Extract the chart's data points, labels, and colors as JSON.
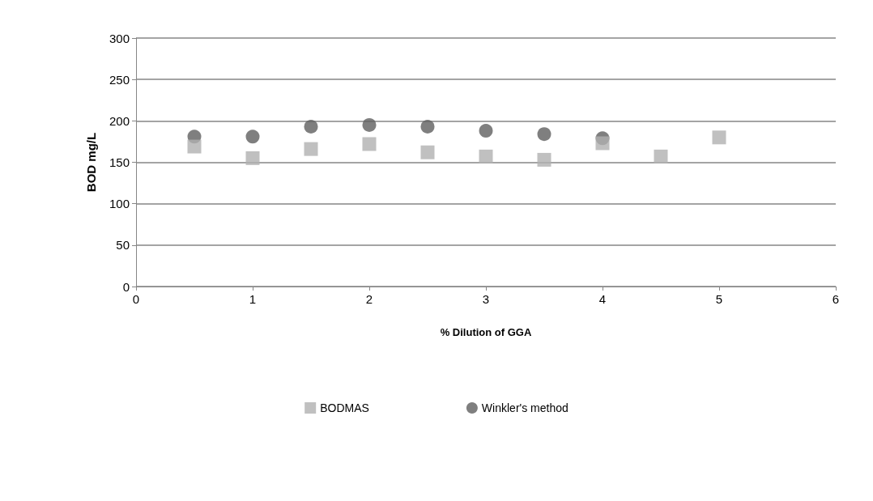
{
  "chart_data": {
    "type": "scatter",
    "xlabel": "% Dilution of GGA",
    "ylabel": "BOD mg/L",
    "xlim": [
      0,
      6
    ],
    "xticks": [
      0,
      1,
      2,
      3,
      4,
      5,
      6
    ],
    "ylim": [
      0,
      300
    ],
    "yticks": [
      0,
      50,
      100,
      150,
      200,
      250,
      300
    ],
    "grid": "y",
    "legend": "bottom",
    "series": [
      {
        "name": "BODMAS",
        "color": "#b0b0b0",
        "marker": "square",
        "x": [
          0.5,
          1,
          1.5,
          2,
          2.5,
          3,
          3.5,
          4,
          4.5,
          5
        ],
        "values": [
          169,
          155,
          166,
          172,
          162,
          157,
          153,
          173,
          157,
          180
        ]
      },
      {
        "name": "Winkler's method",
        "color": "#5f5f5f",
        "marker": "circle",
        "x": [
          0.5,
          1,
          1.5,
          2,
          2.5,
          3,
          3.5,
          4
        ],
        "values": [
          181,
          181,
          193,
          195,
          193,
          188,
          184,
          179
        ]
      }
    ]
  }
}
